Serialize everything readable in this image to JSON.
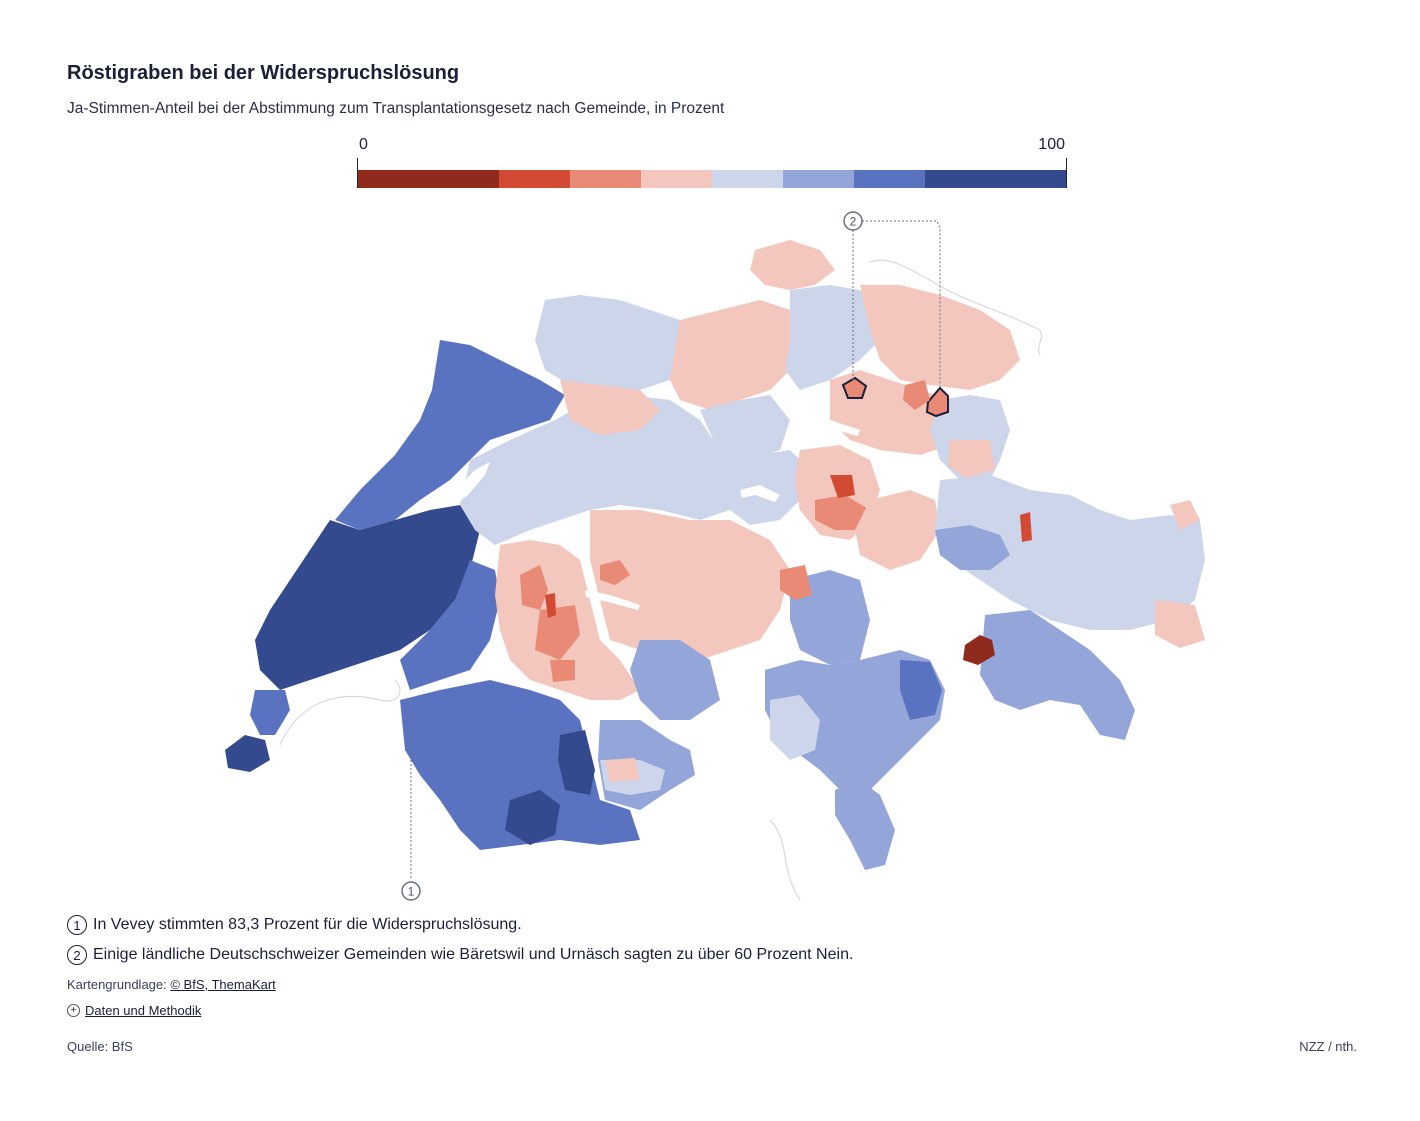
{
  "title": "Röstigraben bei der Widerspruchslösung",
  "subtitle": "Ja-Stimmen-Anteil bei der Abstimmung zum Transplantationsgesetz nach Gemeinde, in Prozent",
  "legend": {
    "min_label": "0",
    "max_label": "100",
    "bins": [
      {
        "from": 0,
        "to": 20,
        "color": "#8f2a1c"
      },
      {
        "from": 20,
        "to": 30,
        "color": "#d24a34"
      },
      {
        "from": 30,
        "to": 40,
        "color": "#e88a76"
      },
      {
        "from": 40,
        "to": 50,
        "color": "#f3c7bd"
      },
      {
        "from": 50,
        "to": 60,
        "color": "#cdd5ea"
      },
      {
        "from": 60,
        "to": 70,
        "color": "#93a5d9"
      },
      {
        "from": 70,
        "to": 80,
        "color": "#5a73c1"
      },
      {
        "from": 80,
        "to": 100,
        "color": "#344a8e"
      }
    ]
  },
  "map": {
    "annotation_1_marker": "1",
    "annotation_2_marker": "2"
  },
  "notes": [
    {
      "marker": "1",
      "text": "In Vevey stimmten 83,3 Prozent für die Widerspruchslösung."
    },
    {
      "marker": "2",
      "text": "Einige ländliche Deutschschweizer Gemeinden wie Bäretswil und Urnäsch sagten zu über 60 Prozent Nein."
    }
  ],
  "credit": {
    "prefix": "Kartengrundlage: ",
    "link": "© BfS, ThemaKart"
  },
  "method_link": "Daten und Methodik",
  "source": "Quelle: BfS",
  "brand": "NZZ / nth."
}
